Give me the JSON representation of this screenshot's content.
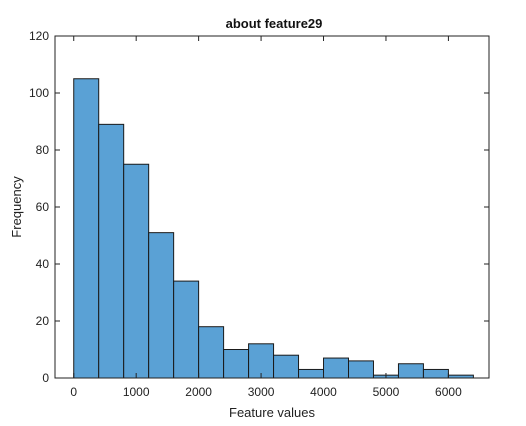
{
  "chart_data": {
    "type": "bar",
    "title": "about feature29",
    "xlabel": "Feature values",
    "ylabel": "Frequency",
    "xlim": [
      -300,
      6650
    ],
    "ylim": [
      0,
      120
    ],
    "xticks": [
      0,
      1000,
      2000,
      3000,
      4000,
      5000,
      6000
    ],
    "yticks": [
      0,
      20,
      40,
      60,
      80,
      100,
      120
    ],
    "bin_width": 400,
    "bin_edges": [
      0,
      400,
      800,
      1200,
      1600,
      2000,
      2400,
      2800,
      3200,
      3600,
      4000,
      4400,
      4800,
      5200,
      5600,
      6000,
      6400
    ],
    "values": [
      105,
      89,
      75,
      51,
      34,
      18,
      10,
      12,
      8,
      3,
      7,
      6,
      1,
      5,
      3,
      1
    ],
    "bar_color": "#5aa1d5",
    "grid": false
  }
}
